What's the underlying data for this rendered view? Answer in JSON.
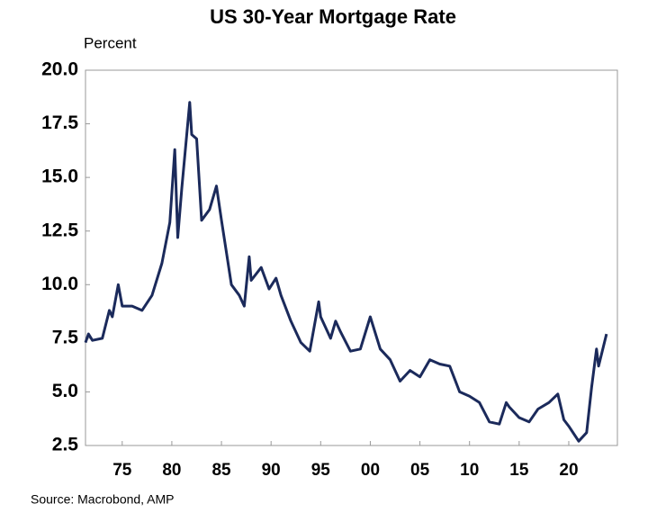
{
  "chart_data": {
    "type": "line",
    "title": "US 30-Year Mortgage Rate",
    "y_label": "Percent",
    "source": "Source: Macrobond, AMP",
    "x": [
      1971.3,
      1971.6,
      1972,
      1973,
      1973.7,
      1974,
      1974.6,
      1975,
      1976,
      1977,
      1978,
      1979,
      1979.8,
      1980.3,
      1980.6,
      1981,
      1981.8,
      1982,
      1982.5,
      1983,
      1983.8,
      1984.5,
      1985,
      1986,
      1986.8,
      1987.3,
      1987.8,
      1988,
      1989,
      1989.8,
      1990.5,
      1991,
      1992,
      1993,
      1993.9,
      1994.8,
      1995,
      1996,
      1996.5,
      1997,
      1998,
      1999,
      2000,
      2001,
      2002,
      2003,
      2004,
      2005,
      2006,
      2007,
      2008,
      2009,
      2010,
      2011,
      2012,
      2013,
      2013.7,
      2014,
      2015,
      2016,
      2016.9,
      2018,
      2018.9,
      2019.5,
      2020,
      2021,
      2021.8,
      2022.3,
      2022.8,
      2023,
      2023.8
    ],
    "series": [
      {
        "name": "30-Year Mortgage Rate",
        "color": "#1b2a5b",
        "values": [
          7.3,
          7.7,
          7.4,
          7.5,
          8.8,
          8.5,
          10.0,
          9.0,
          9.0,
          8.8,
          9.5,
          11.0,
          12.9,
          16.3,
          12.2,
          14.5,
          18.5,
          17.0,
          16.8,
          13.0,
          13.5,
          14.6,
          13.0,
          10.0,
          9.5,
          9.0,
          11.3,
          10.2,
          10.8,
          9.8,
          10.3,
          9.5,
          8.3,
          7.3,
          6.9,
          9.2,
          8.5,
          7.5,
          8.3,
          7.8,
          6.9,
          7.0,
          8.5,
          7.0,
          6.5,
          5.5,
          6.0,
          5.7,
          6.5,
          6.3,
          6.2,
          5.0,
          4.8,
          4.5,
          3.6,
          3.5,
          4.5,
          4.3,
          3.8,
          3.6,
          4.2,
          4.5,
          4.9,
          3.7,
          3.4,
          2.7,
          3.1,
          5.2,
          7.0,
          6.2,
          7.7
        ]
      }
    ],
    "xlim": [
      1971.3,
      2024.9
    ],
    "ylim": [
      2.5,
      20
    ],
    "xticks": [
      {
        "value": 1975,
        "label": "75"
      },
      {
        "value": 1980,
        "label": "80"
      },
      {
        "value": 1985,
        "label": "85"
      },
      {
        "value": 1990,
        "label": "90"
      },
      {
        "value": 1995,
        "label": "95"
      },
      {
        "value": 2000,
        "label": "00"
      },
      {
        "value": 2005,
        "label": "05"
      },
      {
        "value": 2010,
        "label": "10"
      },
      {
        "value": 2015,
        "label": "15"
      },
      {
        "value": 2020,
        "label": "20"
      }
    ],
    "yticks": [
      {
        "value": 20,
        "label": "20.0"
      },
      17.5,
      {
        "value": 15,
        "label": "15.0"
      },
      12.5,
      {
        "value": 10,
        "label": "10.0"
      },
      7.5,
      {
        "value": 5,
        "label": "5.0"
      },
      2.5
    ]
  }
}
